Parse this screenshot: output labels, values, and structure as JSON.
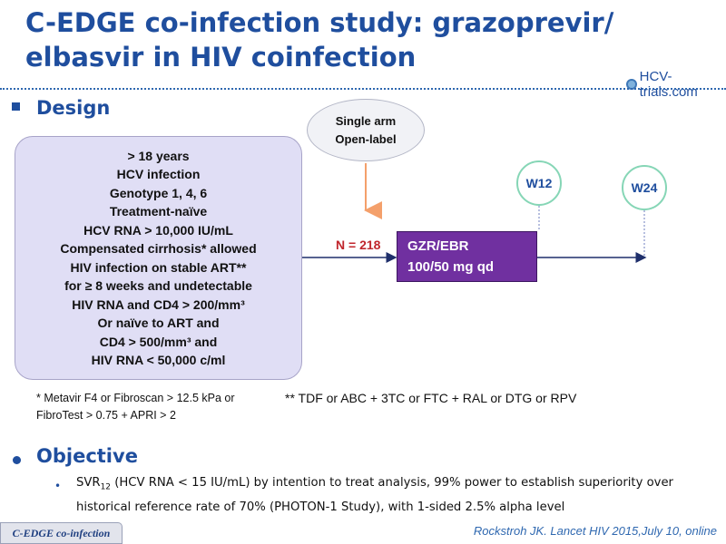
{
  "slide": {
    "title": "C-EDGE co-infection study: grazoprevir/ elbasvir in HIV coinfection",
    "logo_text": "HCV-trials.com"
  },
  "design": {
    "heading": "Design",
    "criteria": [
      "> 18 years",
      "HCV infection",
      "Genotype  1, 4, 6",
      "Treatment-naïve",
      "HCV RNA > 10,000 IU/mL",
      "Compensated  cirrhosis*  allowed",
      "HIV infection on stable ART**",
      "for ≥ 8 weeks and undetectable",
      "HIV RNA and  CD4 > 200/mm³",
      "Or naïve to ART and",
      "CD4 > 500/mm³ and",
      "HIV RNA < 50,000 c/ml"
    ],
    "design_note_line1": "Single arm",
    "design_note_line2": "Open-label",
    "n_label": "N = 218",
    "arm_line1": "GZR/EBR",
    "arm_line2": "100/50 mg qd",
    "week_marker_1": "W12",
    "week_marker_2": "W24",
    "footnote_cirrhosis": "* Metavir F4 or Fibroscan > 12.5 kPa or FibroTest > 0.75 + APRI > 2",
    "footnote_art": "** TDF or ABC + 3TC or FTC + RAL or DTG or RPV"
  },
  "objective": {
    "heading": "Objective",
    "text_prefix": "SVR",
    "text_sub": "12",
    "text_rest": " (HCV RNA < 15 IU/mL) by intention to treat analysis, 99% power to establish superiority over historical reference  rate of 70% (PHOTON-1 Study), with 1-sided 2.5% alpha level"
  },
  "footer": {
    "study_tag": "C-EDGE co-infection",
    "citation": "Rockstroh JK. Lancet HIV 2015,July 10, online"
  },
  "colors": {
    "title_blue": "#1f4e9e",
    "criteria_box": "#e0def5",
    "arm_purple": "#7030a0",
    "n_label_red": "#c0262c",
    "design_arrow_orange": "#f4a06b",
    "week_circle_border": "#86d6b6"
  }
}
